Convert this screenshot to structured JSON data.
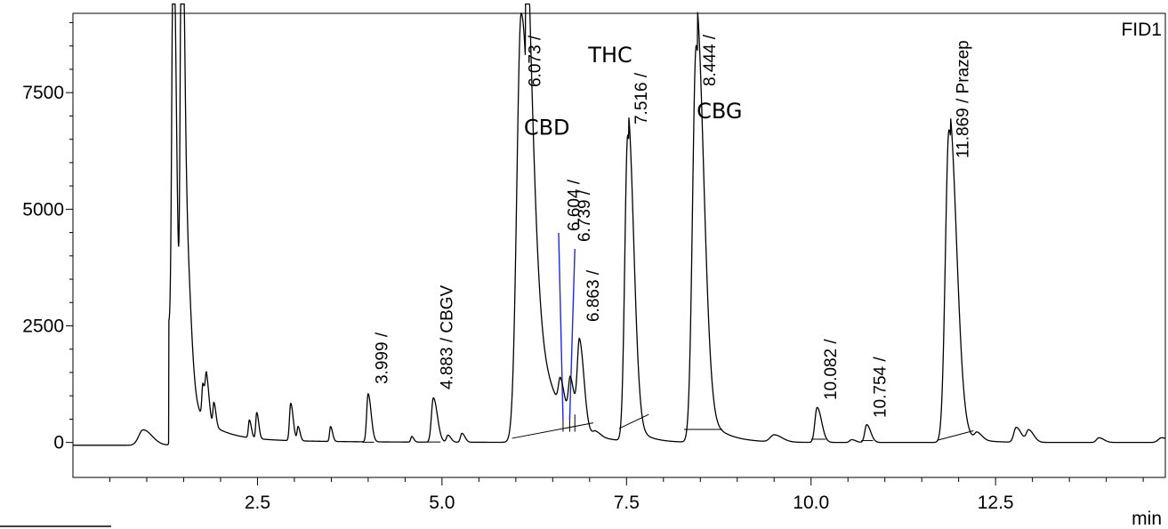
{
  "chart_data": {
    "type": "line",
    "detector": "FID1",
    "x_unit": "min",
    "xlim": [
      0,
      14.8
    ],
    "ylim": [
      -750,
      9200
    ],
    "x_ticks": [
      2.5,
      5.0,
      7.5,
      10.0,
      12.5
    ],
    "x_tick_labels": [
      "2.5",
      "5.0",
      "7.5",
      "10.0",
      "12.5"
    ],
    "y_ticks": [
      0,
      2500,
      5000,
      7500
    ],
    "y_tick_labels": [
      "0",
      "2500",
      "5000",
      "7500"
    ],
    "grid": false,
    "legend": "none",
    "line_color": "#000000",
    "annotation_line_color": "#1f2bd6",
    "baseline": 0,
    "peaks": [
      {
        "rt": 0.95,
        "height": 330,
        "width": 0.09
      },
      {
        "rt": 1.36,
        "height": 9200,
        "width": 0.03,
        "offscale": true
      },
      {
        "rt": 1.47,
        "height": 9200,
        "width": 0.025,
        "offscale": true
      },
      {
        "rt": 1.52,
        "height": 3600,
        "width": 0.05
      },
      {
        "rt": 1.76,
        "height": 700,
        "width": 0.02
      },
      {
        "rt": 1.81,
        "height": 900,
        "width": 0.025
      },
      {
        "rt": 1.91,
        "height": 500,
        "width": 0.02
      },
      {
        "rt": 2.39,
        "height": 380,
        "width": 0.02
      },
      {
        "rt": 2.49,
        "height": 560,
        "width": 0.02
      },
      {
        "rt": 2.95,
        "height": 800,
        "width": 0.025
      },
      {
        "rt": 3.05,
        "height": 300,
        "width": 0.02
      },
      {
        "rt": 3.49,
        "height": 320,
        "width": 0.02
      },
      {
        "rt": 3.999,
        "height": 1030,
        "width": 0.03
      },
      {
        "rt": 4.59,
        "height": 120,
        "width": 0.02
      },
      {
        "rt": 4.883,
        "height": 950,
        "width": 0.04
      },
      {
        "rt": 5.08,
        "height": 150,
        "width": 0.03
      },
      {
        "rt": 5.27,
        "height": 190,
        "width": 0.03
      },
      {
        "rt": 6.073,
        "height": 9200,
        "width": 0.09,
        "offscale": true
      },
      {
        "rt": 6.604,
        "height": 600,
        "width": 0.04
      },
      {
        "rt": 6.739,
        "height": 900,
        "width": 0.04
      },
      {
        "rt": 6.863,
        "height": 1850,
        "width": 0.045
      },
      {
        "rt": 7.08,
        "height": 100,
        "width": 0.05
      },
      {
        "rt": 7.516,
        "height": 6550,
        "width": 0.06
      },
      {
        "rt": 8.444,
        "height": 8500,
        "width": 0.075
      },
      {
        "rt": 9.5,
        "height": 150,
        "width": 0.08
      },
      {
        "rt": 10.082,
        "height": 750,
        "width": 0.045
      },
      {
        "rt": 10.55,
        "height": 60,
        "width": 0.04
      },
      {
        "rt": 10.754,
        "height": 380,
        "width": 0.04
      },
      {
        "rt": 11.869,
        "height": 6700,
        "width": 0.075
      },
      {
        "rt": 12.25,
        "height": 150,
        "width": 0.05
      },
      {
        "rt": 12.78,
        "height": 320,
        "width": 0.05
      },
      {
        "rt": 12.95,
        "height": 260,
        "width": 0.05
      },
      {
        "rt": 13.9,
        "height": 100,
        "width": 0.05
      },
      {
        "rt": 14.75,
        "height": 100,
        "width": 0.07
      }
    ],
    "integration_baselines": [
      {
        "x1": 3.92,
        "y1": 5,
        "x2": 4.08,
        "y2": 5
      },
      {
        "x1": 4.8,
        "y1": 10,
        "x2": 4.98,
        "y2": 10
      },
      {
        "x1": 5.95,
        "y1": 90,
        "x2": 7.05,
        "y2": 420
      },
      {
        "x1": 7.4,
        "y1": 300,
        "x2": 7.8,
        "y2": 600
      },
      {
        "x1": 8.28,
        "y1": 280,
        "x2": 8.8,
        "y2": 280
      },
      {
        "x1": 10.0,
        "y1": 70,
        "x2": 10.2,
        "y2": 70
      },
      {
        "x1": 10.68,
        "y1": 40,
        "x2": 10.84,
        "y2": 40
      },
      {
        "x1": 11.72,
        "y1": 50,
        "x2": 12.2,
        "y2": 250
      }
    ],
    "peak_labels": [
      {
        "text": "3.999 /",
        "x": 4.02
      },
      {
        "text": "4.883 / CBGV",
        "x": 4.9
      },
      {
        "text": "6.073 /",
        "x": 6.09
      },
      {
        "text": "6.604 /",
        "x": 6.62
      },
      {
        "text": "6.739 /",
        "x": 6.76
      },
      {
        "text": "6.863 /",
        "x": 6.88
      },
      {
        "text": "7.516 /",
        "x": 7.53
      },
      {
        "text": "8.444 /",
        "x": 8.46
      },
      {
        "text": "10.082 /",
        "x": 10.1
      },
      {
        "text": "10.754 /",
        "x": 10.77
      },
      {
        "text": "11.869 / Prazep",
        "x": 11.89
      }
    ],
    "compound_labels": [
      {
        "text": "CBD",
        "x": 6.42,
        "y": 6600
      },
      {
        "text": "THC",
        "x": 7.28,
        "y": 8150
      },
      {
        "text": "CBG",
        "x": 8.76,
        "y": 6950
      }
    ]
  }
}
